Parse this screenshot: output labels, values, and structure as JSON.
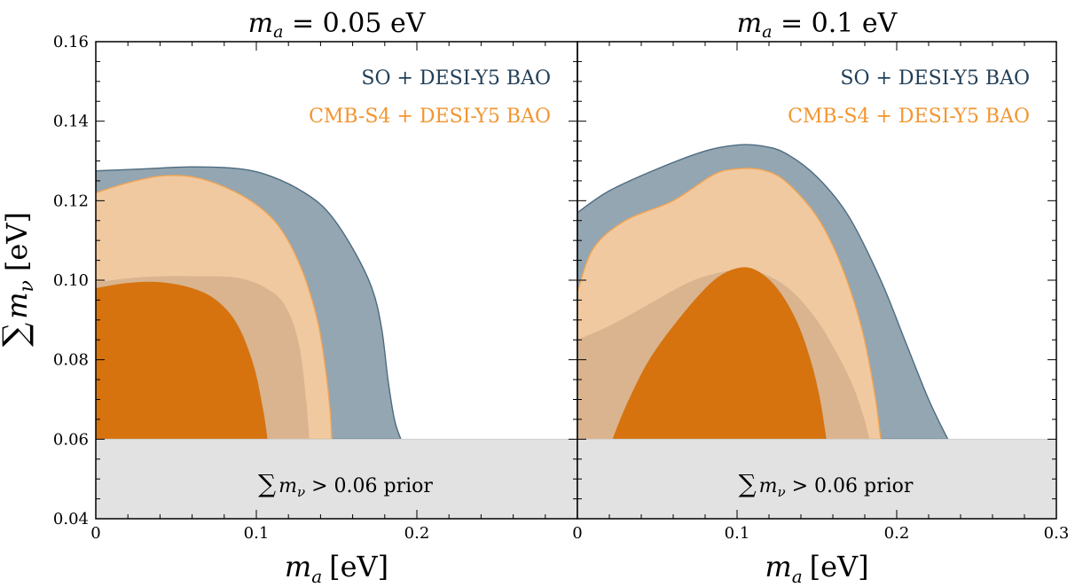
{
  "chart_data": {
    "type": "area",
    "y_axis": {
      "label": "∑ m_ν [eV]",
      "label_main": "∑",
      "label_var": "m",
      "label_sub": "ν",
      "label_unit": "[eV]",
      "ylim": [
        0.04,
        0.16
      ],
      "ticks": [
        0.04,
        0.06,
        0.08,
        0.1,
        0.12,
        0.14,
        0.16
      ],
      "tick_labels": [
        "0.04",
        "0.06",
        "0.08",
        "0.10",
        "0.12",
        "0.14",
        "0.16"
      ]
    },
    "colors": {
      "so_outer": "#93a6b2",
      "so_edge": "#4e6c80",
      "s4_outer": "#f0c9a0",
      "s4_edge": "#f2a453",
      "so_inner": "#d9b48f",
      "s4_inner": "#d6730f",
      "prior_fill": "#e2e2e2",
      "prior_edge": "#cfcfcf",
      "legend_so": "#223f58",
      "legend_s4": "#f3952f"
    },
    "legend": [
      {
        "label": "SO + DESI-Y5 BAO",
        "color_key": "legend_so"
      },
      {
        "label": "CMB-S4 + DESI-Y5 BAO",
        "color_key": "legend_s4"
      }
    ],
    "prior": {
      "threshold": 0.06,
      "label": "∑ m_ν > 0.06 prior",
      "label_sum": "∑",
      "label_var": "m",
      "label_sub": "ν",
      "label_rest": " > 0.06 prior"
    },
    "panels": [
      {
        "title": "m_a = 0.05 eV",
        "title_var": "m",
        "title_sub": "a",
        "title_rest": " = 0.05 eV",
        "xlabel": "m_a [eV]",
        "xlabel_var": "m",
        "xlabel_sub": "a",
        "xlabel_unit": "[eV]",
        "xlim": [
          0,
          0.3
        ],
        "ticks": [
          0,
          0.1,
          0.2
        ],
        "tick_labels": [
          "0",
          "0.1",
          "0.2"
        ],
        "contours": [
          {
            "name": "so-outer",
            "series": "SO + DESI-Y5 BAO",
            "level": "95%",
            "fill_key": "so_outer",
            "edge_key": "so_edge",
            "x": [
              0,
              0.03,
              0.06,
              0.09,
              0.11,
              0.13,
              0.145,
              0.16,
              0.172,
              0.178,
              0.182,
              0.186,
              0.19
            ],
            "y": [
              0.1275,
              0.128,
              0.1285,
              0.128,
              0.126,
              0.122,
              0.117,
              0.108,
              0.098,
              0.088,
              0.075,
              0.065,
              0.06
            ]
          },
          {
            "name": "s4-outer",
            "series": "CMB-S4 + DESI-Y5 BAO",
            "level": "95%",
            "fill_key": "s4_outer",
            "edge_key": "s4_edge",
            "x": [
              0,
              0.02,
              0.04,
              0.06,
              0.08,
              0.1,
              0.115,
              0.128,
              0.138,
              0.143,
              0.146,
              0.147
            ],
            "y": [
              0.122,
              0.1245,
              0.1262,
              0.126,
              0.1235,
              0.119,
              0.113,
              0.103,
              0.09,
              0.078,
              0.067,
              0.06
            ]
          },
          {
            "name": "so-inner",
            "series": "SO + DESI-Y5 BAO",
            "level": "68%",
            "fill_key": "so_inner",
            "edge_key": "so_inner",
            "x": [
              0,
              0.03,
              0.06,
              0.09,
              0.11,
              0.12,
              0.127,
              0.131,
              0.133
            ],
            "y": [
              0.0995,
              0.1008,
              0.101,
              0.1005,
              0.097,
              0.092,
              0.083,
              0.07,
              0.06
            ]
          },
          {
            "name": "s4-inner",
            "series": "CMB-S4 + DESI-Y5 BAO",
            "level": "68%",
            "fill_key": "s4_inner",
            "edge_key": "s4_inner",
            "x": [
              0,
              0.02,
              0.04,
              0.06,
              0.075,
              0.088,
              0.098,
              0.104,
              0.107
            ],
            "y": [
              0.098,
              0.0993,
              0.0995,
              0.098,
              0.095,
              0.089,
              0.079,
              0.068,
              0.06
            ]
          }
        ]
      },
      {
        "title": "m_a = 0.1 eV",
        "title_var": "m",
        "title_sub": "a",
        "title_rest": " = 0.1 eV",
        "xlabel": "m_a [eV]",
        "xlabel_var": "m",
        "xlabel_sub": "a",
        "xlabel_unit": "[eV]",
        "xlim": [
          0,
          0.3
        ],
        "ticks": [
          0,
          0.1,
          0.2,
          0.3
        ],
        "tick_labels": [
          "0",
          "0.1",
          "0.2",
          "0.3"
        ],
        "contours": [
          {
            "name": "so-outer",
            "series": "SO + DESI-Y5 BAO",
            "level": "95%",
            "fill_key": "so_outer",
            "edge_key": "so_edge",
            "x": [
              0,
              0.02,
              0.05,
              0.08,
              0.1,
              0.115,
              0.13,
              0.15,
              0.17,
              0.19,
              0.205,
              0.22,
              0.232
            ],
            "y": [
              0.117,
              0.1225,
              0.128,
              0.1325,
              0.134,
              0.1338,
              0.132,
              0.126,
              0.116,
              0.1,
              0.085,
              0.07,
              0.06
            ]
          },
          {
            "name": "s4-outer",
            "series": "CMB-S4 + DESI-Y5 BAO",
            "level": "95%",
            "fill_key": "s4_outer",
            "edge_key": "s4_edge",
            "x": [
              0,
              0.01,
              0.03,
              0.06,
              0.085,
              0.1,
              0.115,
              0.13,
              0.15,
              0.165,
              0.178,
              0.186,
              0.19
            ],
            "y": [
              0.097,
              0.108,
              0.115,
              0.12,
              0.1265,
              0.128,
              0.1278,
              0.125,
              0.116,
              0.104,
              0.088,
              0.072,
              0.06
            ]
          },
          {
            "name": "so-inner",
            "series": "SO + DESI-Y5 BAO",
            "level": "68%",
            "fill_key": "so_inner",
            "edge_key": "so_inner",
            "x": [
              0,
              0.02,
              0.045,
              0.07,
              0.09,
              0.105,
              0.12,
              0.135,
              0.15,
              0.162,
              0.172,
              0.179,
              0.183
            ],
            "y": [
              0.085,
              0.0885,
              0.094,
              0.0995,
              0.102,
              0.1025,
              0.101,
              0.097,
              0.09,
              0.082,
              0.074,
              0.066,
              0.06
            ]
          },
          {
            "name": "s4-inner",
            "series": "CMB-S4 + DESI-Y5 BAO",
            "level": "68%",
            "fill_key": "s4_inner",
            "edge_key": "s4_inner",
            "x": [
              0.022,
              0.03,
              0.045,
              0.065,
              0.085,
              0.1,
              0.112,
              0.125,
              0.137,
              0.146,
              0.152,
              0.156
            ],
            "y": [
              0.06,
              0.068,
              0.08,
              0.091,
              0.0998,
              0.103,
              0.1025,
              0.098,
              0.09,
              0.08,
              0.07,
              0.06
            ]
          }
        ]
      }
    ]
  }
}
